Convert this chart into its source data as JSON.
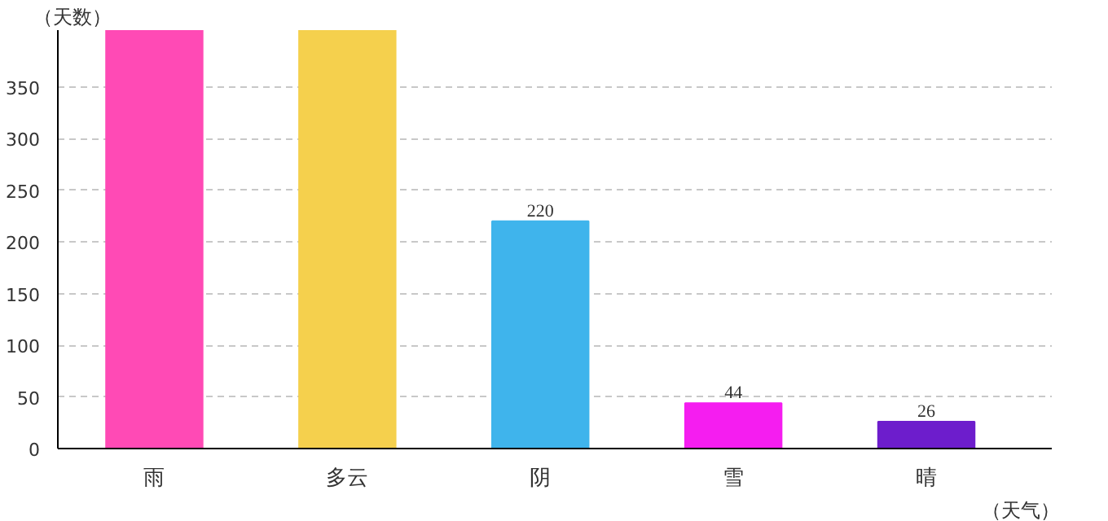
{
  "chart_data": {
    "type": "bar",
    "xlabel": "（天气）",
    "ylabel": "（天数）",
    "categories": [
      "雨",
      "多云",
      "阴",
      "雪",
      "晴"
    ],
    "values": [
      405,
      405,
      220,
      44,
      26
    ],
    "value_labels": [
      null,
      null,
      "220",
      "44",
      "26"
    ],
    "colors": [
      "#ff4ab5",
      "#f5d04d",
      "#3fb4ec",
      "#f51df0",
      "#6d1dcc"
    ],
    "ylim": [
      0,
      405
    ],
    "yticks": [
      0,
      50,
      100,
      150,
      200,
      250,
      300,
      350
    ],
    "grid": "y"
  }
}
